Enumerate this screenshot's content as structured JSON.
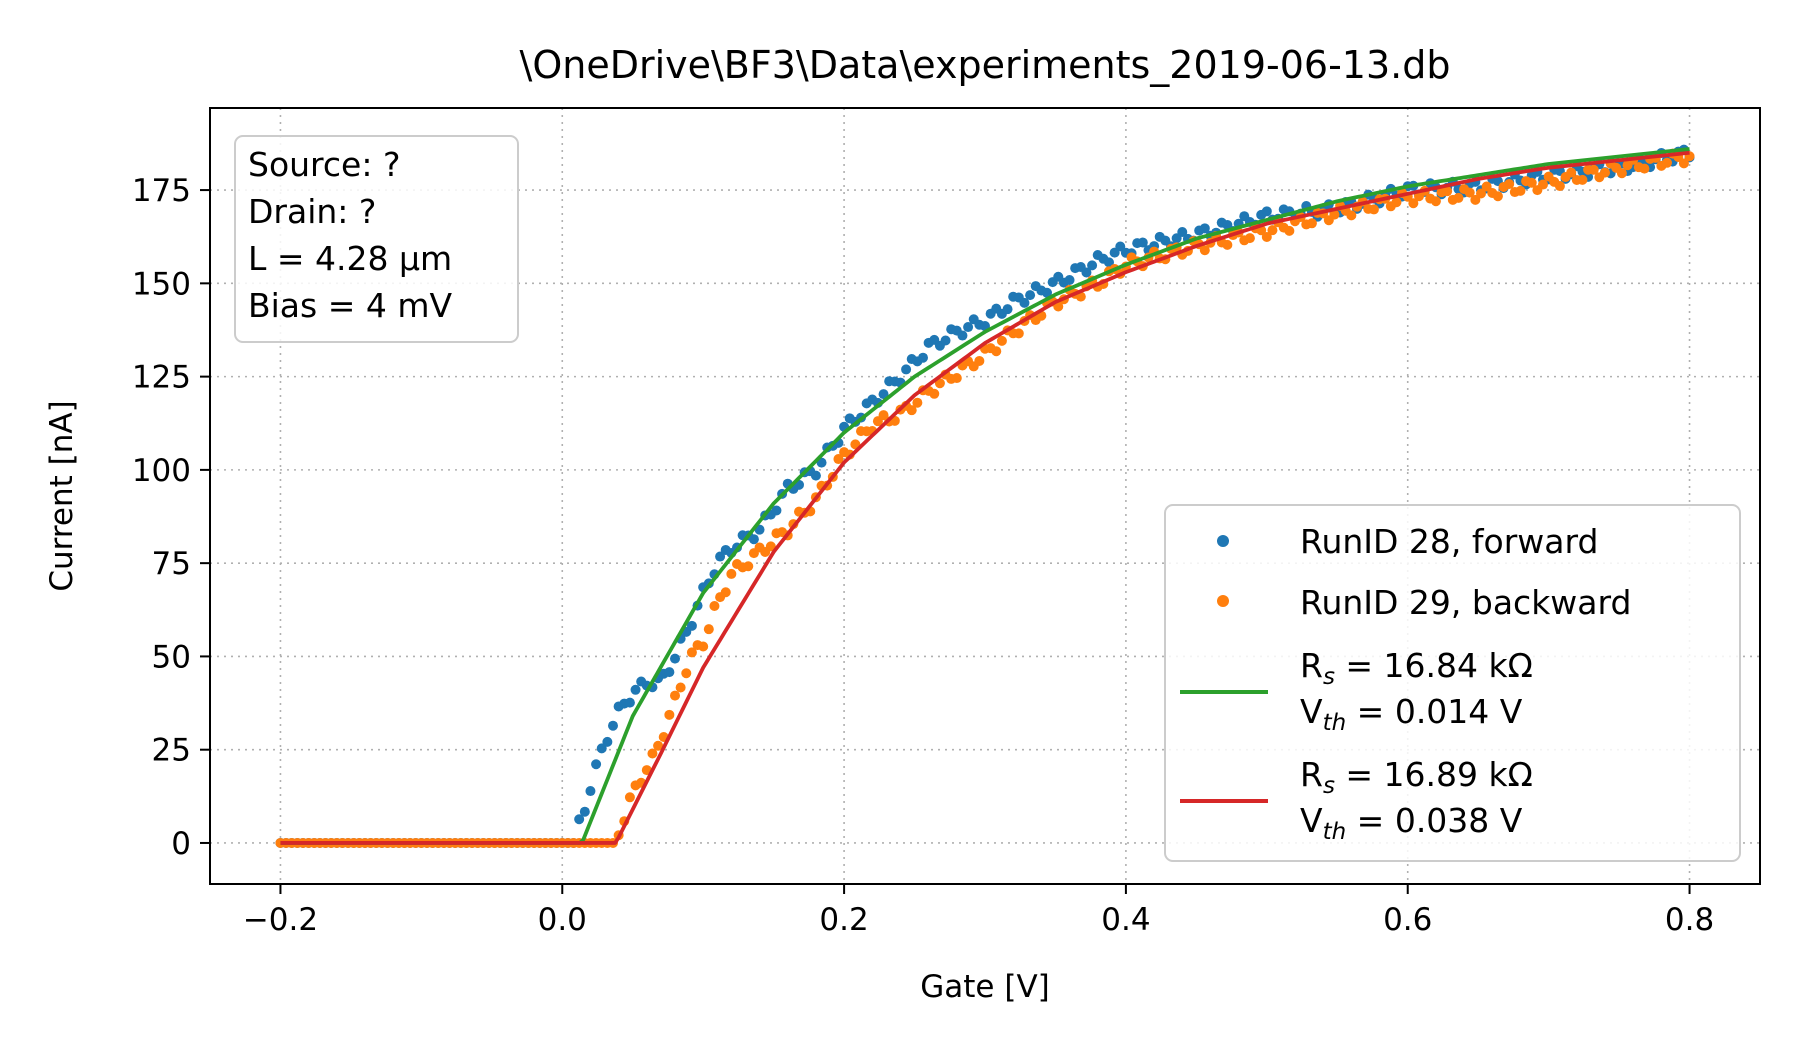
{
  "chart_data": {
    "type": "scatter",
    "title": "\\OneDrive\\BF3\\Data\\experiments_2019-06-13.db",
    "xlabel": "Gate [V]",
    "ylabel": "Current [nA]",
    "xlim": [
      -0.25,
      0.85
    ],
    "ylim": [
      -11,
      197
    ],
    "xticks": [
      -0.2,
      0.0,
      0.2,
      0.4,
      0.6,
      0.8
    ],
    "xtick_labels": [
      "−0.2",
      "0.0",
      "0.2",
      "0.4",
      "0.6",
      "0.8"
    ],
    "yticks": [
      0,
      25,
      50,
      75,
      100,
      125,
      150,
      175
    ],
    "ytick_labels": [
      "0",
      "25",
      "50",
      "75",
      "100",
      "125",
      "150",
      "175"
    ],
    "grid": true,
    "legend_position": "lower-right",
    "info_box": {
      "position": "top-left",
      "lines": [
        "Source: ?",
        "Drain: ?",
        "L = 4.28 μm",
        "Bias = 4 mV"
      ]
    },
    "series": [
      {
        "name": "RunID 28, forward",
        "kind": "points",
        "color": "#1f77b4",
        "x_range": [
          -0.2,
          0.8
        ],
        "x": [
          0.01,
          0.015,
          0.02,
          0.025,
          0.03,
          0.035,
          0.04,
          0.045,
          0.05,
          0.06,
          0.07,
          0.08,
          0.09,
          0.1,
          0.11,
          0.12,
          0.14,
          0.16,
          0.18,
          0.2,
          0.22,
          0.24,
          0.26,
          0.28,
          0.3,
          0.32,
          0.35,
          0.38,
          0.4,
          0.45,
          0.5,
          0.55,
          0.6,
          0.65,
          0.7,
          0.75,
          0.8
        ],
        "y": [
          3,
          8,
          15,
          21,
          27,
          31,
          35,
          38,
          40,
          43,
          43,
          50,
          58,
          67,
          75,
          79,
          84,
          95,
          100,
          111,
          118,
          125,
          133,
          137,
          140,
          145,
          150,
          156,
          159,
          163,
          168,
          170,
          175,
          176,
          179,
          181,
          185
        ]
      },
      {
        "name": "RunID 29, backward",
        "kind": "points",
        "color": "#ff7f0e",
        "x_range": [
          -0.2,
          0.8
        ],
        "x": [
          0.04,
          0.045,
          0.05,
          0.055,
          0.06,
          0.065,
          0.07,
          0.08,
          0.09,
          0.1,
          0.11,
          0.12,
          0.14,
          0.16,
          0.18,
          0.2,
          0.22,
          0.24,
          0.26,
          0.28,
          0.3,
          0.32,
          0.35,
          0.38,
          0.4,
          0.45,
          0.5,
          0.55,
          0.6,
          0.65,
          0.7,
          0.75,
          0.8
        ],
        "y": [
          3,
          8,
          13,
          17,
          20,
          23,
          28,
          38,
          49,
          54,
          64,
          72,
          78,
          84,
          92,
          104,
          112,
          115,
          121,
          126,
          131,
          137,
          145,
          150,
          155,
          160,
          164,
          169,
          173,
          174,
          177,
          181,
          184
        ]
      },
      {
        "name": "R_s = 16.84 kΩ, V_th = 0.014 V",
        "legend_line1_main": "R",
        "legend_line1_sub": "s",
        "legend_line1_rest": " = 16.84 kΩ",
        "legend_line2_main": "V",
        "legend_line2_sub": "th",
        "legend_line2_rest": " = 0.014 V",
        "kind": "line",
        "color": "#2ca02c",
        "Rs_kohm": 16.84,
        "Vth": 0.014,
        "x_range": [
          -0.2,
          0.8
        ],
        "x": [
          0.014,
          0.05,
          0.1,
          0.15,
          0.2,
          0.25,
          0.3,
          0.35,
          0.4,
          0.45,
          0.5,
          0.55,
          0.6,
          0.65,
          0.7,
          0.75,
          0.8
        ],
        "y": [
          0,
          34,
          67,
          91,
          110,
          125,
          137,
          147,
          155,
          162,
          167,
          172,
          176,
          179,
          182,
          184,
          186
        ]
      },
      {
        "name": "R_s = 16.89 kΩ, V_th = 0.038 V",
        "legend_line1_main": "R",
        "legend_line1_sub": "s",
        "legend_line1_rest": " = 16.89 kΩ",
        "legend_line2_main": "V",
        "legend_line2_sub": "th",
        "legend_line2_rest": " = 0.038 V",
        "kind": "line",
        "color": "#d62728",
        "Rs_kohm": 16.89,
        "Vth": 0.038,
        "x_range": [
          -0.2,
          0.8
        ],
        "x": [
          0.038,
          0.05,
          0.07,
          0.1,
          0.15,
          0.2,
          0.25,
          0.3,
          0.35,
          0.4,
          0.45,
          0.5,
          0.55,
          0.6,
          0.65,
          0.7,
          0.75,
          0.8
        ],
        "y": [
          0,
          9,
          24,
          47,
          78,
          102,
          120,
          134,
          145,
          153,
          160,
          166,
          170,
          174,
          178,
          181,
          183,
          185
        ]
      }
    ]
  }
}
